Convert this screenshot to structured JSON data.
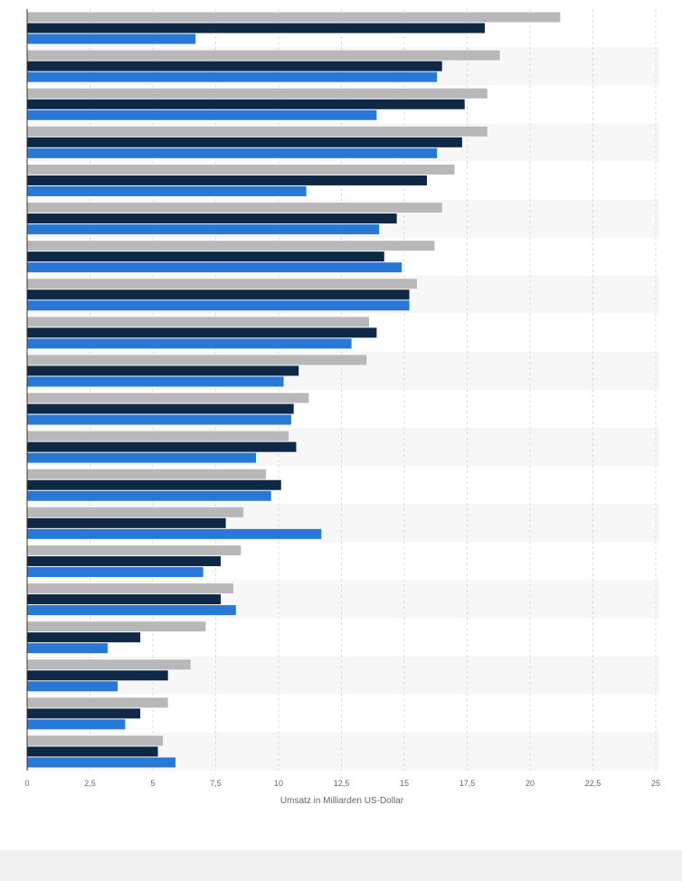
{
  "chart_data": {
    "type": "bar",
    "orientation": "horizontal",
    "title": "",
    "xlabel": "Umsatz in Milliarden US-Dollar",
    "ylabel": "",
    "xlim": [
      0,
      25
    ],
    "xticks": [
      0,
      2.5,
      5,
      7.5,
      10,
      12.5,
      15,
      17.5,
      20,
      22.5,
      25
    ],
    "xtick_labels": [
      "0",
      "2,5",
      "5",
      "7,5",
      "10",
      "12,5",
      "15",
      "17,5",
      "20",
      "22,5",
      "25"
    ],
    "grid": true,
    "legend": "none",
    "categories": [
      "",
      "",
      "",
      "",
      "",
      "",
      "",
      "",
      "",
      "",
      "",
      "",
      "",
      "",
      "",
      "",
      "",
      "",
      "",
      ""
    ],
    "colors": [
      "#b8b7b9",
      "#0e2846",
      "#2878d8"
    ],
    "series": [
      {
        "values": [
          21.2,
          18.8,
          18.3,
          18.3,
          17.0,
          16.5,
          16.2,
          15.5,
          13.6,
          13.5,
          11.2,
          10.4,
          9.5,
          8.6,
          8.5,
          8.2,
          7.1,
          6.5,
          5.6,
          5.4
        ]
      },
      {
        "values": [
          18.2,
          16.5,
          17.4,
          17.3,
          15.9,
          14.7,
          14.2,
          15.2,
          13.9,
          10.8,
          10.6,
          10.7,
          10.1,
          7.9,
          7.7,
          7.7,
          4.5,
          5.6,
          4.5,
          5.2
        ]
      },
      {
        "values": [
          6.7,
          16.3,
          13.9,
          16.3,
          11.1,
          14.0,
          14.9,
          15.2,
          12.9,
          10.2,
          10.5,
          9.1,
          9.7,
          11.7,
          7.0,
          8.3,
          3.2,
          3.6,
          3.9,
          5.9
        ]
      }
    ]
  }
}
